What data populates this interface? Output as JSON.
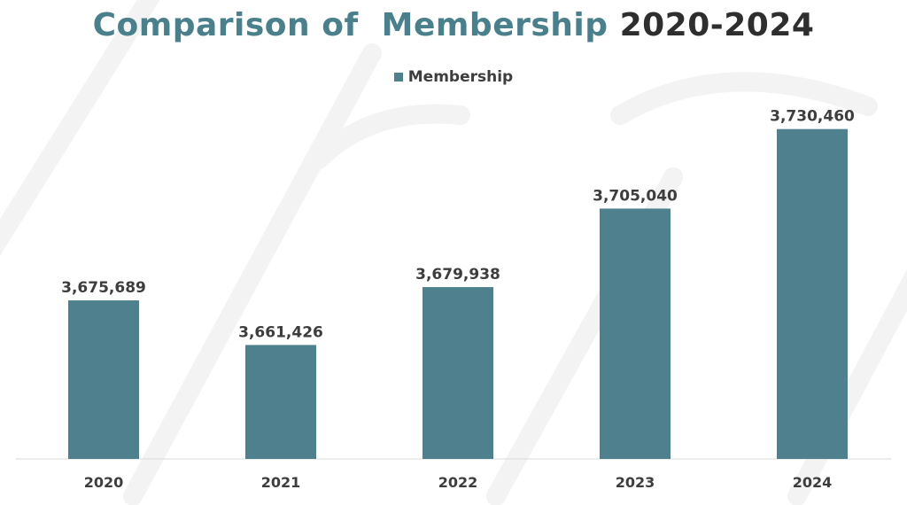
{
  "title": {
    "part1": "Comparison of  Membership",
    "part2": "2020-2024"
  },
  "colors": {
    "bar": "#4f808d",
    "title_accent": "#4a7f8c",
    "title_dark": "#2e2e2e",
    "label": "#3d3d3d",
    "axis": "#d9d9d9"
  },
  "chart_data": {
    "type": "bar",
    "categories": [
      "2020",
      "2021",
      "2022",
      "2023",
      "2024"
    ],
    "series": [
      {
        "name": "Membership",
        "values": [
          3675689,
          3661426,
          3679938,
          3705040,
          3730460
        ],
        "labels": [
          "3,675,689",
          "3,661,426",
          "3,679,938",
          "3,705,040",
          "3,730,460"
        ]
      }
    ],
    "title": "Comparison of  Membership 2020-2024",
    "xlabel": "",
    "ylabel": "",
    "ylim": [
      3625000,
      3740000
    ],
    "grid": false,
    "legend": "top-center"
  }
}
